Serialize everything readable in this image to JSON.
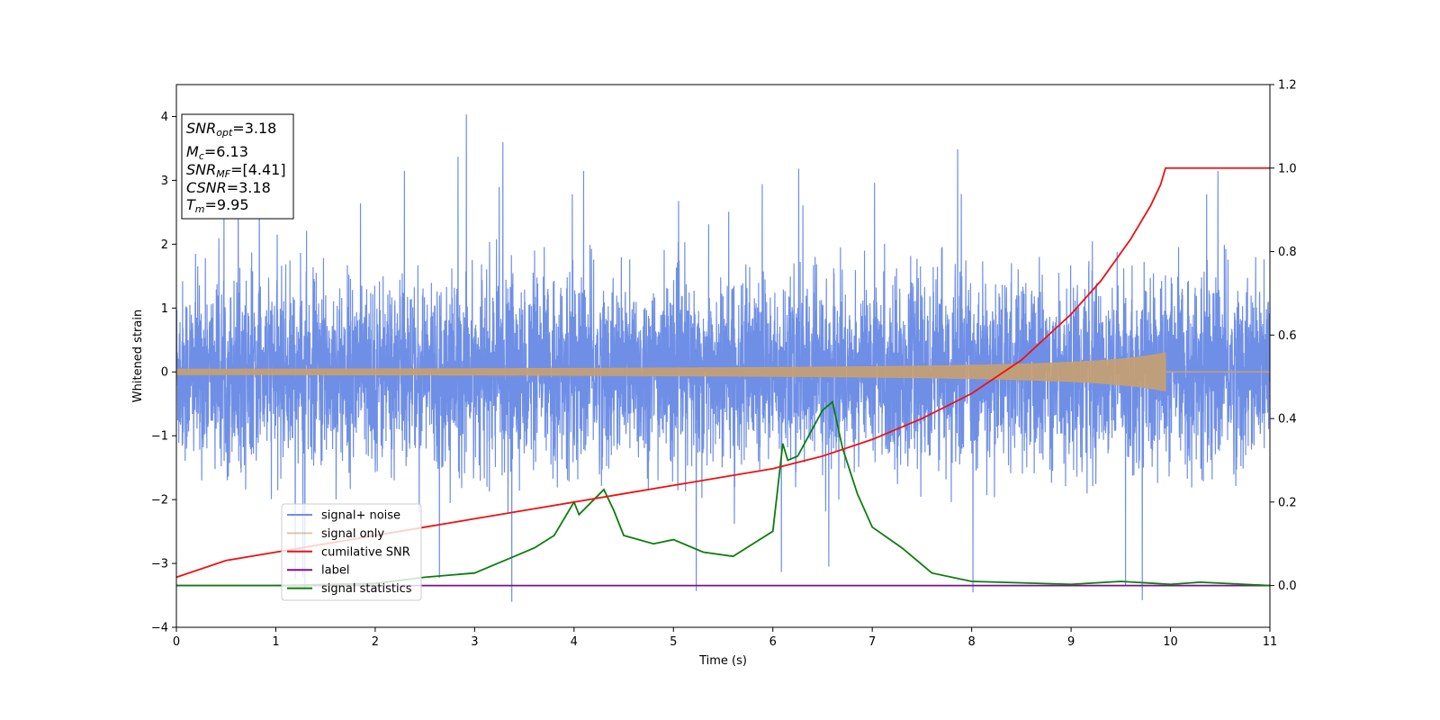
{
  "chart_data": {
    "type": "line",
    "xlabel": "Time (s)",
    "ylabel": "Whitened strain",
    "xlim": [
      0,
      11
    ],
    "ylim_left": [
      -4,
      4.5
    ],
    "ylim_right": [
      -0.1,
      1.2
    ],
    "x_ticks": [
      "0",
      "1",
      "2",
      "3",
      "4",
      "5",
      "6",
      "7",
      "8",
      "9",
      "10",
      "11"
    ],
    "y_left_ticks": [
      "−4",
      "−3",
      "−2",
      "−1",
      "0",
      "1",
      "2",
      "3",
      "4"
    ],
    "y_right_ticks": [
      "0.0",
      "0.2",
      "0.4",
      "0.6",
      "0.8",
      "1.0",
      "1.2"
    ],
    "grid": false,
    "legend_position": "lower-left",
    "legend": [
      "signal+ noise",
      "signal only",
      "cumilative SNR",
      "label",
      "signal statistics"
    ],
    "annotation": {
      "snr_opt": {
        "label": "SNR",
        "sub": "opt",
        "value": "=3.18"
      },
      "mc": {
        "label": "M",
        "sub": "c",
        "value": "=6.13"
      },
      "snr_mf": {
        "label": "SNR",
        "sub": "MF",
        "value": "=[4.41]"
      },
      "csnr": {
        "label": "CSNR",
        "value": "=3.18"
      },
      "tm": {
        "label": "T",
        "sub": "m",
        "value": "=9.95"
      }
    },
    "series": [
      {
        "name": "signal+ noise",
        "axis": "left",
        "color": "#6f8fe6",
        "noise_sigma": 0.7,
        "approx_range": [
          -3.6,
          4.2
        ]
      },
      {
        "name": "signal only",
        "axis": "left",
        "color": "#c8a070",
        "merger_time": 9.95,
        "peak_amplitude": 0.3
      },
      {
        "name": "cumilative SNR",
        "axis": "right",
        "color": "#ee1111",
        "x": [
          0,
          0.5,
          1,
          1.5,
          2,
          2.5,
          3,
          3.5,
          4,
          4.5,
          5,
          5.5,
          6,
          6.5,
          7,
          7.5,
          8,
          8.5,
          9,
          9.3,
          9.6,
          9.8,
          9.9,
          9.95,
          10,
          11
        ],
        "y": [
          0.02,
          0.06,
          0.08,
          0.1,
          0.12,
          0.14,
          0.16,
          0.18,
          0.2,
          0.22,
          0.24,
          0.26,
          0.28,
          0.31,
          0.35,
          0.4,
          0.46,
          0.54,
          0.65,
          0.73,
          0.83,
          0.91,
          0.96,
          1.0,
          1.0,
          1.0
        ]
      },
      {
        "name": "label",
        "axis": "right",
        "color": "#7b0f8c",
        "x": [
          0,
          11
        ],
        "y": [
          0,
          0
        ]
      },
      {
        "name": "signal statistics",
        "axis": "right",
        "color": "#0c7d0c",
        "x": [
          0,
          1,
          2,
          2.5,
          3,
          3.2,
          3.4,
          3.6,
          3.8,
          4.0,
          4.05,
          4.3,
          4.4,
          4.5,
          4.8,
          5.0,
          5.3,
          5.6,
          5.8,
          6.0,
          6.1,
          6.15,
          6.25,
          6.5,
          6.6,
          6.7,
          6.85,
          7.0,
          7.3,
          7.6,
          8,
          9,
          9.5,
          10,
          10.3,
          11
        ],
        "y": [
          0,
          0,
          0.005,
          0.02,
          0.03,
          0.05,
          0.07,
          0.09,
          0.12,
          0.2,
          0.17,
          0.23,
          0.18,
          0.12,
          0.1,
          0.11,
          0.08,
          0.07,
          0.1,
          0.13,
          0.34,
          0.3,
          0.31,
          0.42,
          0.44,
          0.33,
          0.22,
          0.14,
          0.09,
          0.03,
          0.01,
          0.003,
          0.01,
          0.003,
          0.008,
          0
        ]
      }
    ]
  }
}
